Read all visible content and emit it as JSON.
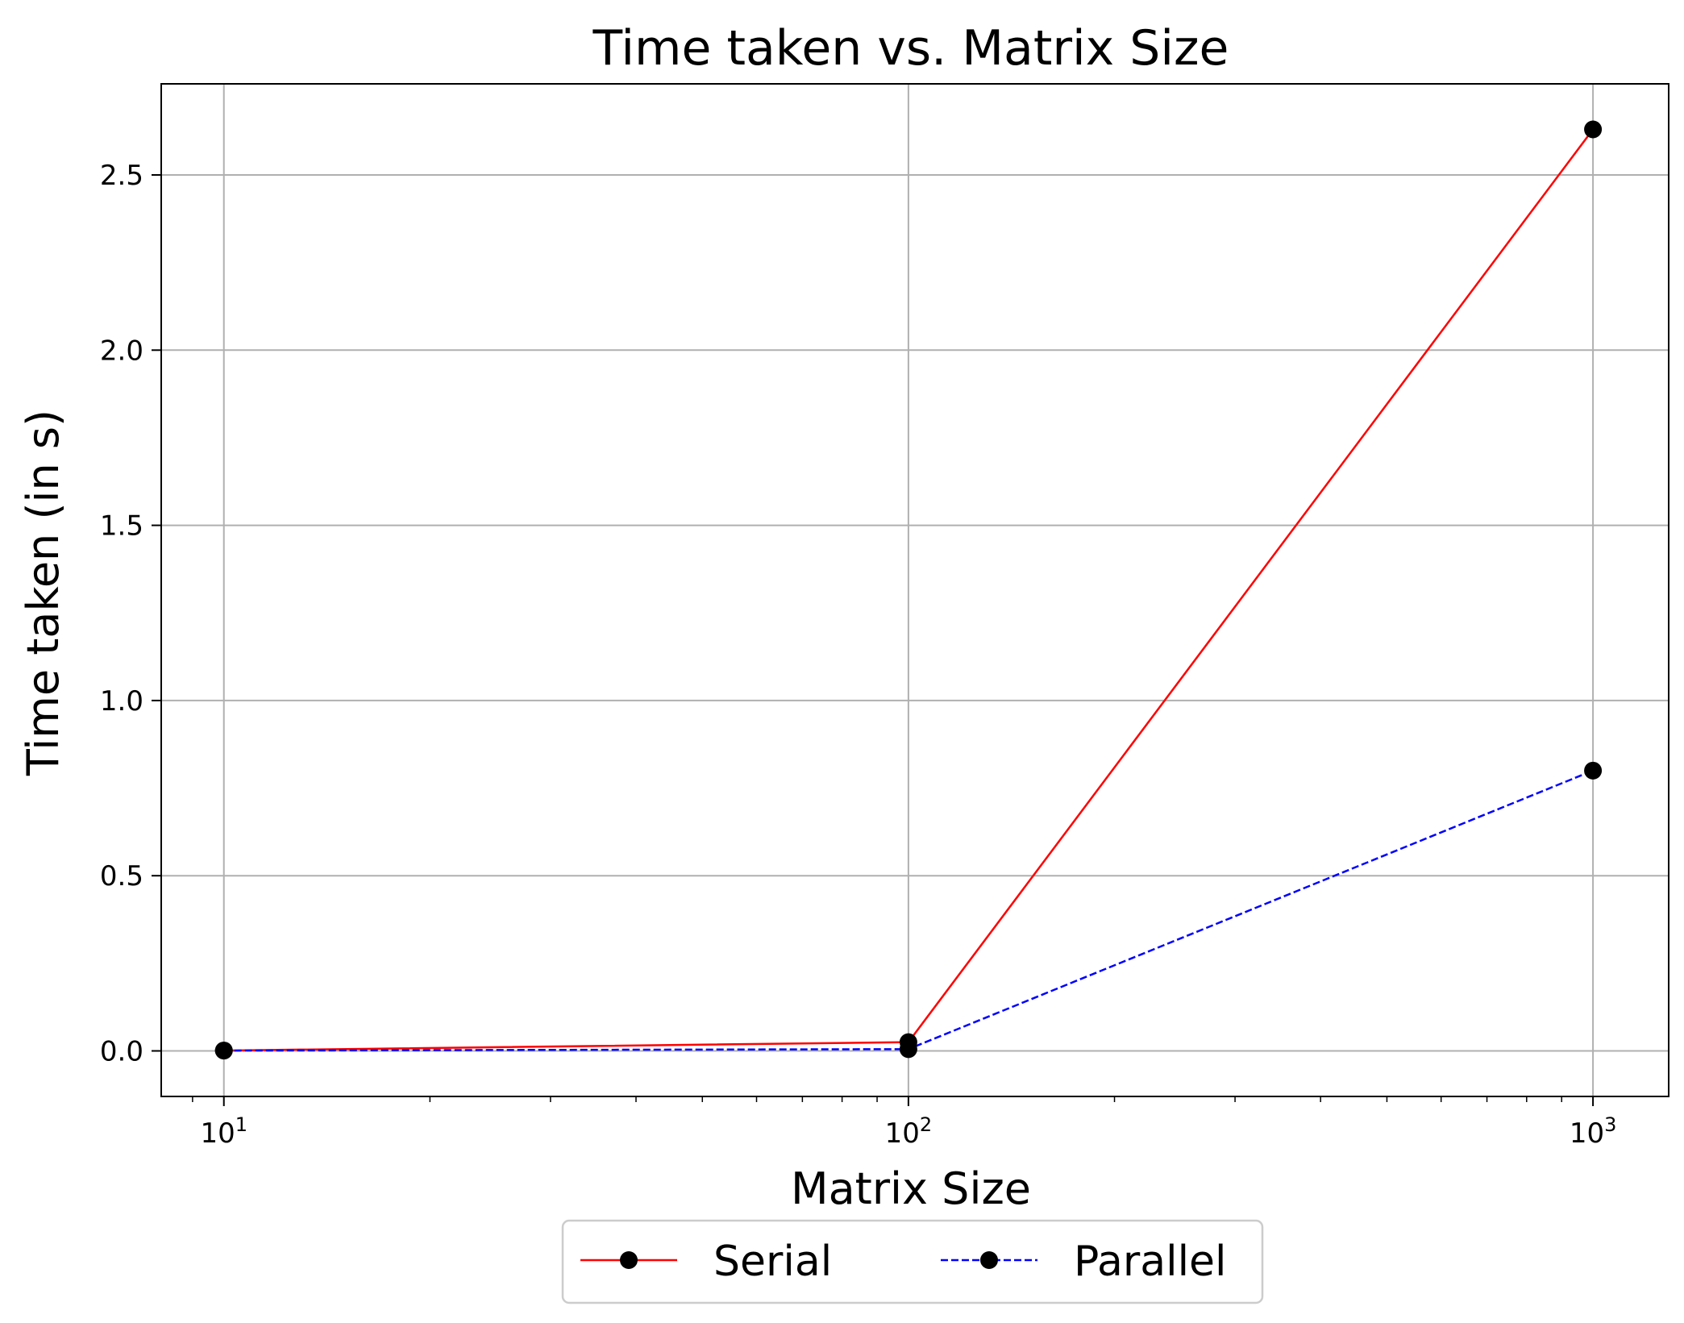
{
  "chart_data": {
    "type": "line",
    "title": "Time taken vs. Matrix Size",
    "xlabel": "Matrix Size",
    "ylabel": "Time taken (in s)",
    "x_scale": "log",
    "x": [
      10,
      100,
      1000
    ],
    "x_ticks": [
      {
        "value": 10,
        "base": "10",
        "exp": "1"
      },
      {
        "value": 100,
        "base": "10",
        "exp": "2"
      },
      {
        "value": 1000,
        "base": "10",
        "exp": "3"
      }
    ],
    "y_ticks": [
      {
        "value": 0.0,
        "label": "0.0"
      },
      {
        "value": 0.5,
        "label": "0.5"
      },
      {
        "value": 1.0,
        "label": "1.0"
      },
      {
        "value": 1.5,
        "label": "1.5"
      },
      {
        "value": 2.0,
        "label": "2.0"
      },
      {
        "value": 2.5,
        "label": "2.5"
      }
    ],
    "xlim": [
      8.1,
      1290
    ],
    "ylim": [
      -0.13,
      2.76
    ],
    "grid": true,
    "legend_position": "bottom-center",
    "series": [
      {
        "name": "Serial",
        "values": [
          0.001,
          0.025,
          2.63
        ],
        "color": "#ff0000",
        "linestyle": "solid",
        "marker": "circle",
        "marker_color": "#000000"
      },
      {
        "name": "Parallel",
        "values": [
          0.001,
          0.005,
          0.8
        ],
        "color": "#0000ff",
        "linestyle": "dashed",
        "marker": "circle",
        "marker_color": "#000000"
      }
    ]
  }
}
